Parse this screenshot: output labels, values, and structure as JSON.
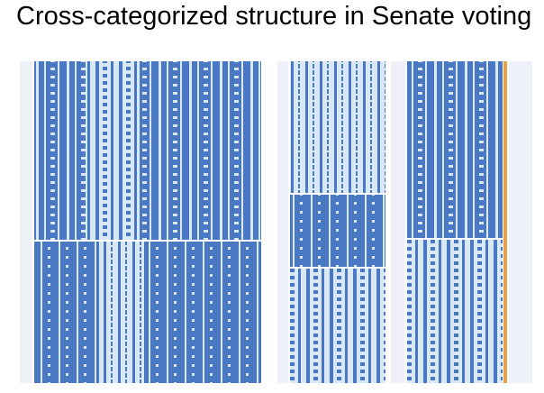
{
  "slide": {
    "title": "Cross-categorized structure in Senate voting"
  }
}
